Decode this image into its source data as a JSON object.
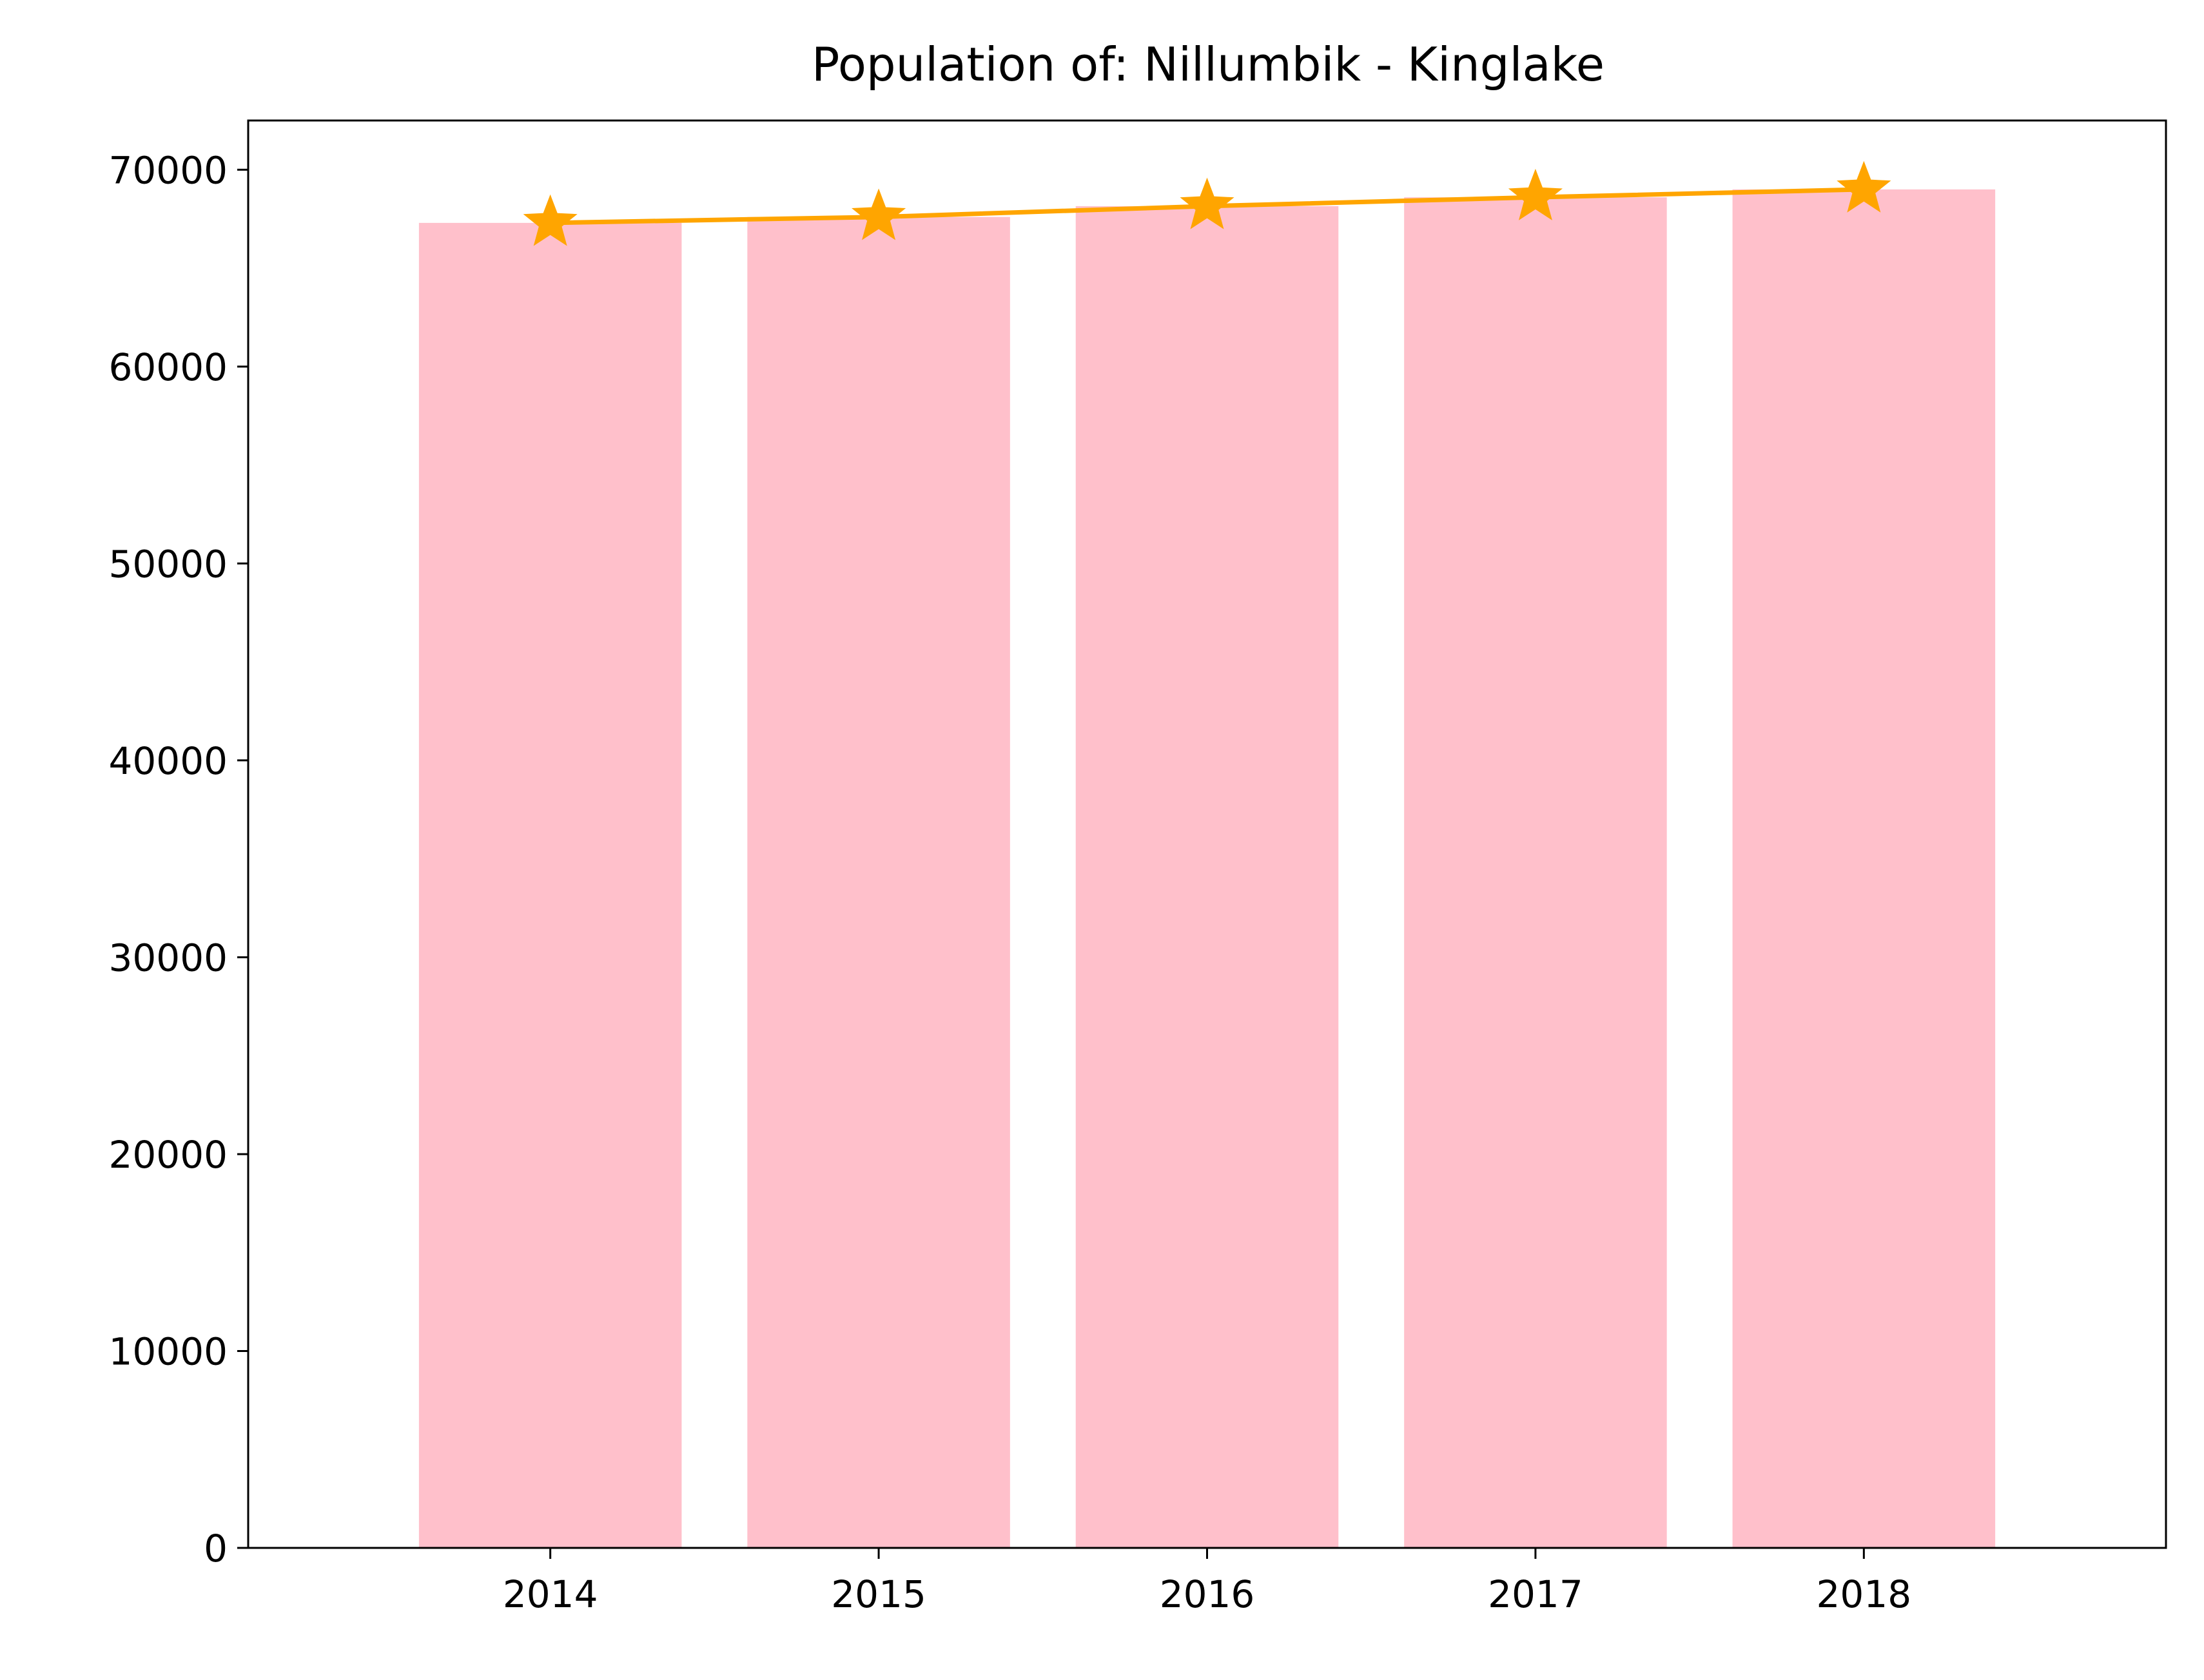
{
  "chart_data": {
    "type": "bar",
    "title": "Population of: Nillumbik - Kinglake",
    "xlabel": "",
    "ylabel": "",
    "categories": [
      "2014",
      "2015",
      "2016",
      "2017",
      "2018"
    ],
    "series": [
      {
        "kind": "bar",
        "values": [
          67300,
          67600,
          68150,
          68600,
          69000
        ],
        "color": "#ffc0cb"
      },
      {
        "kind": "line",
        "marker": "star",
        "values": [
          67300,
          67600,
          68150,
          68600,
          69000
        ],
        "color": "#ffa500"
      }
    ],
    "ylim": [
      0,
      72500
    ],
    "yticks": [
      0,
      10000,
      20000,
      30000,
      40000,
      50000,
      60000,
      70000
    ],
    "grid": false,
    "legend": "none"
  }
}
